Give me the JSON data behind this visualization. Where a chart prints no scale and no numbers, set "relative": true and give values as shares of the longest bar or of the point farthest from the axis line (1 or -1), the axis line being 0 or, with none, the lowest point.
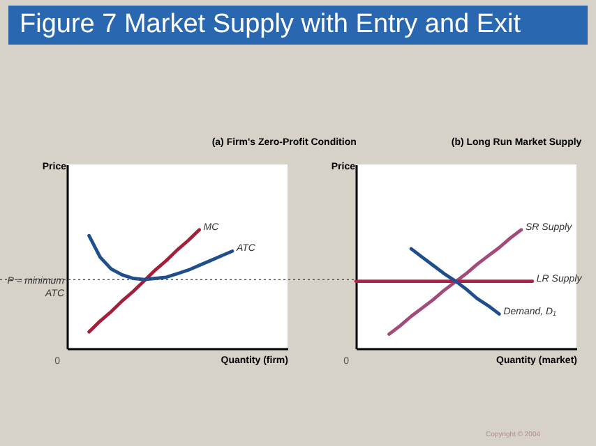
{
  "chart_data": [
    {
      "type": "line",
      "title": "(a) Firm's Zero-Profit Condition",
      "xlabel": "Quantity (firm)",
      "ylabel": "Price",
      "relative": true,
      "line_style": "solid",
      "categories": [
        null,
        null,
        null,
        null,
        null,
        null,
        null,
        null,
        null,
        null,
        null,
        null,
        null,
        null,
        null,
        null,
        null,
        null,
        null,
        null,
        null
      ],
      "annotations": [
        "Figure 7 Market Supply with Entry and Exit",
        "Copyright © 2004",
        "0"
      ],
      "ref_lines": [
        {
          "axis": "y",
          "value": 0.58,
          "label": "P = minimum ATC",
          "line_style": "dotted",
          "color": "#555555"
        }
      ],
      "series": [
        {
          "name": "MC",
          "color": "#a3203a",
          "values": [
            null,
            null,
            0.14,
            0.23,
            0.31,
            0.4,
            0.48,
            0.57,
            0.66,
            0.74,
            0.83,
            0.91,
            1,
            null,
            null,
            null,
            null,
            null,
            null,
            null,
            null
          ]
        },
        {
          "name": "ATC",
          "color": "#1f4e8c",
          "values": [
            null,
            null,
            0.95,
            0.77,
            0.67,
            0.62,
            0.59,
            0.58,
            0.59,
            0.6,
            0.63,
            0.66,
            0.7,
            0.74,
            0.78,
            0.82,
            null,
            null,
            null,
            null,
            null
          ]
        }
      ]
    },
    {
      "type": "line",
      "title": "(b) Long Run Market Supply",
      "xlabel": "Quantity (market)",
      "ylabel": "Price",
      "relative": true,
      "line_style": "solid",
      "categories": [
        null,
        null,
        null,
        null,
        null,
        null,
        null,
        null,
        null,
        null,
        null,
        null,
        null,
        null,
        null,
        null,
        null,
        null,
        null,
        null,
        null
      ],
      "annotations": [
        "0"
      ],
      "series": [
        {
          "name": "SR Supply",
          "color": "#a24a7a",
          "values": [
            null,
            null,
            null,
            0.12,
            0.19,
            0.27,
            0.34,
            0.41,
            0.49,
            0.56,
            0.63,
            0.71,
            0.78,
            0.85,
            0.93,
            1,
            null,
            null,
            null,
            null,
            null
          ]
        },
        {
          "name": "LR Supply",
          "color": "#b02040",
          "values": [
            0.566,
            0.566,
            0.566,
            0.566,
            0.566,
            0.566,
            0.566,
            0.566,
            0.566,
            0.566,
            0.566,
            0.566,
            0.566,
            0.566,
            0.566,
            0.566,
            0.566,
            null,
            null,
            null,
            null
          ]
        },
        {
          "name": "Demand, D₁",
          "color": "#1f4e8c",
          "values": [
            null,
            null,
            null,
            null,
            null,
            0.84,
            0.77,
            0.7,
            0.63,
            0.57,
            0.5,
            0.42,
            0.36,
            0.29,
            null,
            null,
            null,
            null,
            null,
            null,
            null
          ]
        }
      ]
    }
  ]
}
